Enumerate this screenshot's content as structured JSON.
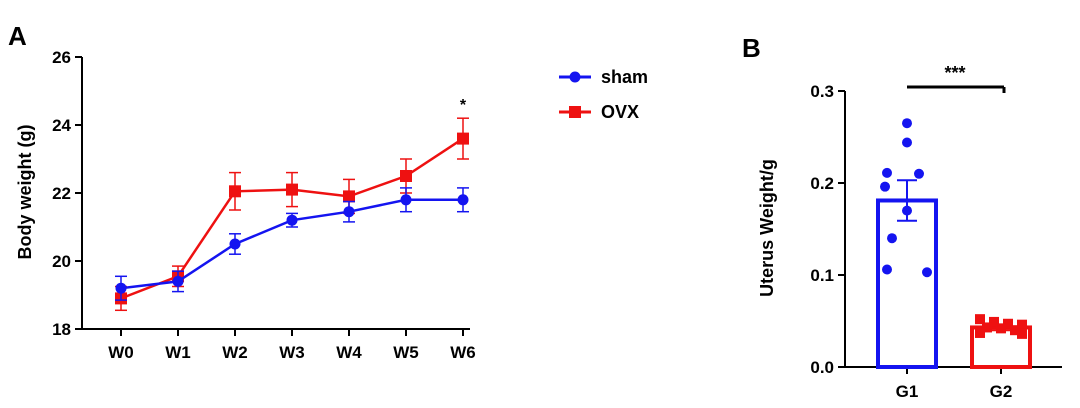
{
  "figure": {
    "panel_a_label": "A",
    "panel_b_label": "B"
  },
  "colors": {
    "sham": "#1414f0",
    "ovx": "#ee1111",
    "axis": "#000000"
  },
  "chart_data": [
    {
      "type": "line",
      "panel": "A",
      "xlabel": "",
      "ylabel": "Body weight (g)",
      "ylim": [
        18,
        26
      ],
      "yticks": [
        18,
        20,
        22,
        24,
        26
      ],
      "categories": [
        "W0",
        "W1",
        "W2",
        "W3",
        "W4",
        "W5",
        "W6"
      ],
      "series": [
        {
          "name": "sham",
          "marker": "circle",
          "color": "#1414f0",
          "values": [
            19.2,
            19.4,
            20.5,
            21.2,
            21.45,
            21.8,
            21.8
          ],
          "errors": [
            0.35,
            0.3,
            0.3,
            0.2,
            0.3,
            0.35,
            0.35
          ]
        },
        {
          "name": "OVX",
          "marker": "square",
          "color": "#ee1111",
          "values": [
            18.9,
            19.55,
            22.05,
            22.1,
            21.9,
            22.5,
            23.6
          ],
          "errors": [
            0.35,
            0.3,
            0.55,
            0.5,
            0.5,
            0.5,
            0.6
          ]
        }
      ],
      "annotations": [
        {
          "category": "W6",
          "text": "*"
        }
      ],
      "legend": "top-right"
    },
    {
      "type": "bar",
      "panel": "B",
      "xlabel": "",
      "ylabel": "Uterus Weight/g",
      "ylim": [
        0,
        0.3
      ],
      "yticks": [
        "0.0",
        "0.1",
        "0.2",
        "0.3"
      ],
      "categories": [
        "G1",
        "G2"
      ],
      "values": [
        0.181,
        0.043
      ],
      "errors": [
        0.022,
        0.003
      ],
      "colors": [
        "#1414f0",
        "#ee1111"
      ],
      "points": [
        [
          0.265,
          0.244,
          0.211,
          0.21,
          0.196,
          0.17,
          0.14,
          0.106,
          0.103
        ],
        [
          0.052,
          0.049,
          0.047,
          0.046,
          0.043,
          0.042,
          0.04,
          0.037,
          0.036
        ]
      ],
      "significance": {
        "between": [
          "G1",
          "G2"
        ],
        "text": "***"
      }
    }
  ]
}
